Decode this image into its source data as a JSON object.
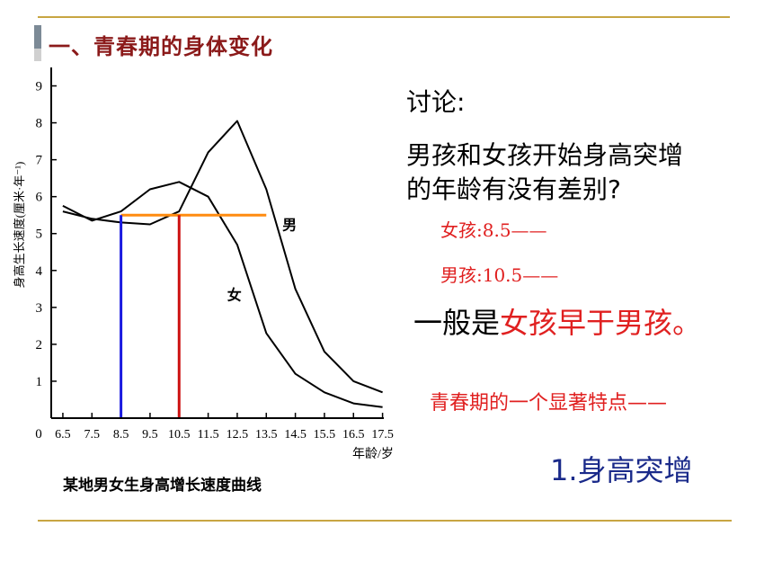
{
  "slide": {
    "title": "一、青春期的身体变化",
    "chart_caption": "某地男女生身高增长速度曲线",
    "discussion_label": "讨论:",
    "question_line1": "男孩和女孩开始身高突增",
    "question_line2": "的年龄有没有差别?",
    "girl_answer": "女孩:8.5——",
    "boy_answer": "男孩:10.5——",
    "conclusion_prefix": "一般是",
    "conclusion_girl": "女孩",
    "conclusion_mid": "早于",
    "conclusion_boy": "男孩",
    "conclusion_end": "。",
    "feature_intro": "青春期的一个显著特点——",
    "feature_point": "1.身高突增"
  },
  "colors": {
    "title": "#8b1a1a",
    "rule": "#c8a542",
    "answer_red": "#e02020",
    "point_blue": "#1a2a8a",
    "marker_blue": "#1a1ae0",
    "marker_red": "#cc1010",
    "threshold_orange": "#ff8c10"
  },
  "chart_data": {
    "type": "line",
    "ylabel": "身高生长速度(厘米·年⁻¹)",
    "xlabel": "年龄/岁",
    "origin_label": "0",
    "x_ticks": [
      "6.5",
      "7.5",
      "8.5",
      "9.5",
      "10.5",
      "11.5",
      "12.5",
      "13.5",
      "14.5",
      "15.5",
      "16.5",
      "17.5"
    ],
    "y_ticks": [
      "1",
      "2",
      "3",
      "4",
      "5",
      "6",
      "7",
      "8",
      "9"
    ],
    "xlim": [
      6.1,
      18.1
    ],
    "ylim": [
      0,
      9.5
    ],
    "series": [
      {
        "name": "男",
        "x": [
          6.5,
          7.5,
          8.5,
          9.5,
          10.5,
          11.5,
          12.5,
          13.5,
          14.5,
          15.5,
          16.5,
          17.5
        ],
        "values": [
          5.6,
          5.4,
          5.3,
          5.25,
          5.6,
          7.2,
          8.05,
          6.2,
          3.5,
          1.8,
          1.0,
          0.7
        ]
      },
      {
        "name": "女",
        "x": [
          6.5,
          7.5,
          8.5,
          9.5,
          10.5,
          11.5,
          12.5,
          13.5,
          14.5,
          15.5,
          16.5,
          17.5
        ],
        "values": [
          5.75,
          5.35,
          5.6,
          6.2,
          6.4,
          6.0,
          4.7,
          2.3,
          1.2,
          0.7,
          0.4,
          0.3
        ]
      }
    ],
    "series_labels": [
      {
        "text": "男",
        "x": 14.3,
        "y": 5.1
      },
      {
        "text": "女",
        "x": 12.4,
        "y": 3.2
      }
    ],
    "threshold_line": {
      "y": 5.5,
      "x_start": 8.5,
      "x_end": 13.5
    },
    "markers": [
      {
        "x": 8.5,
        "y_top": 5.5,
        "color": "blue"
      },
      {
        "x": 10.5,
        "y_top": 5.5,
        "color": "red"
      }
    ],
    "grid": false,
    "legend": "none"
  }
}
